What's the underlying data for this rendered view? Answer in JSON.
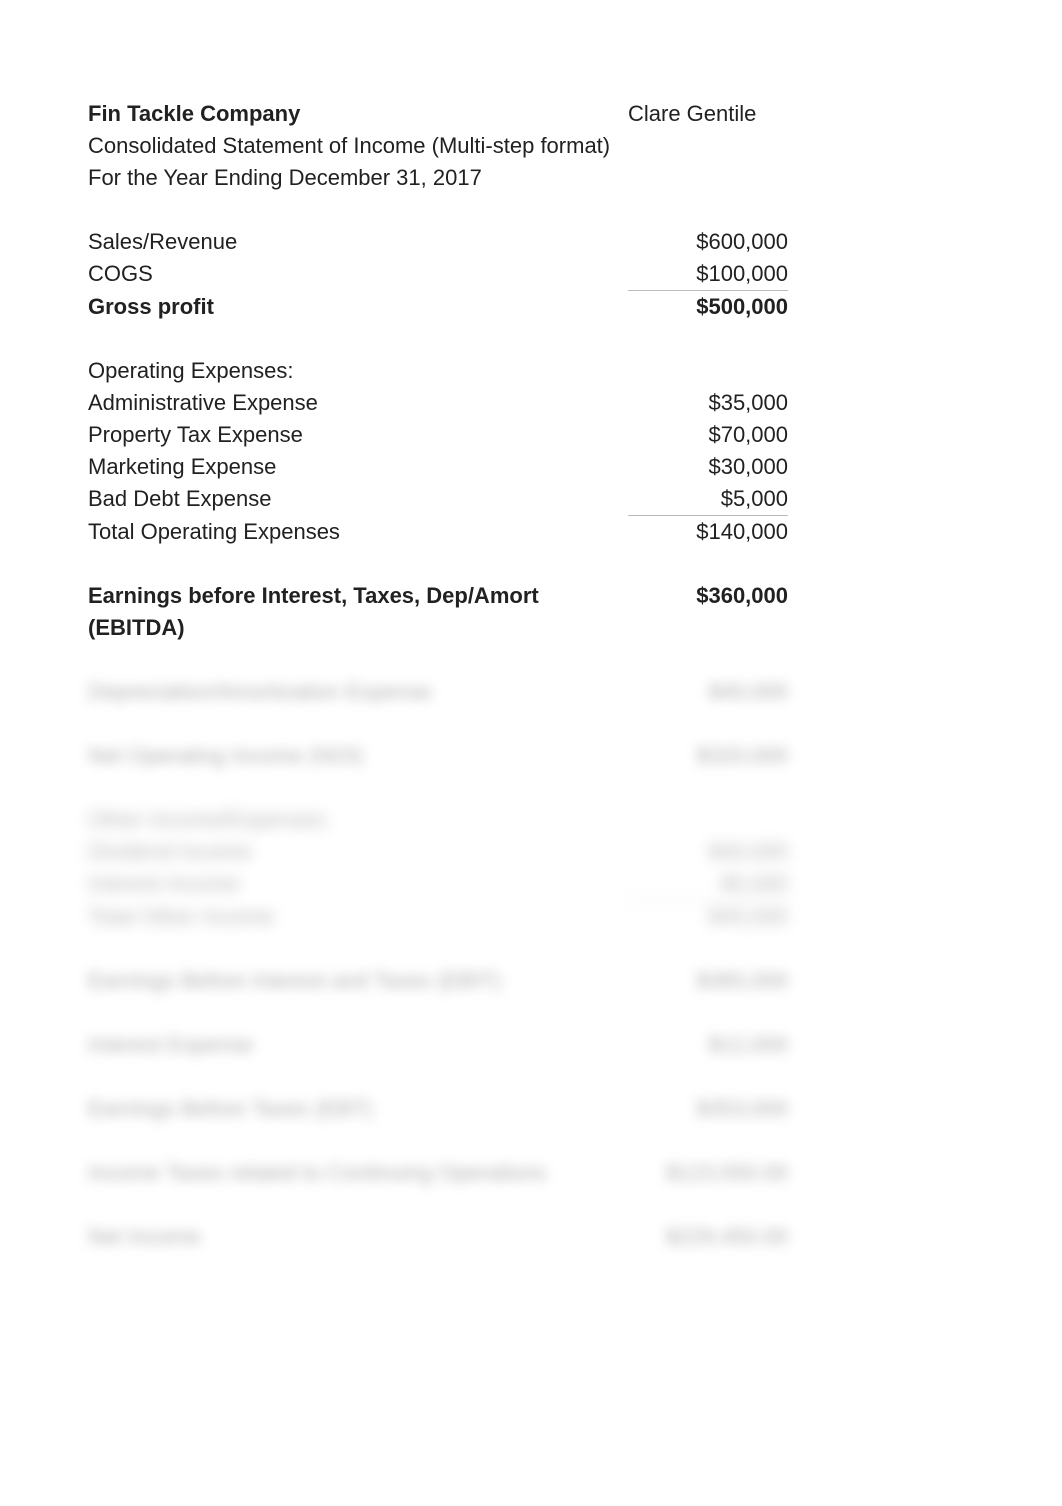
{
  "header": {
    "company": "Fin Tackle Company",
    "author": "Clare Gentile",
    "subtitle1": "Consolidated Statement of Income (Multi-step format)",
    "subtitle2": "For the Year Ending December 31, 2017"
  },
  "gross": {
    "sales_label": "Sales/Revenue",
    "sales_value": "$600,000",
    "cogs_label": "COGS",
    "cogs_value": "$100,000",
    "gp_label": "Gross profit",
    "gp_value": "$500,000"
  },
  "opex": {
    "heading": "Operating Expenses:",
    "admin_label": "Administrative Expense",
    "admin_value": "$35,000",
    "proptax_label": "Property Tax Expense",
    "proptax_value": "$70,000",
    "marketing_label": "Marketing Expense",
    "marketing_value": "$30,000",
    "baddebt_label": "Bad Debt Expense",
    "baddebt_value": "$5,000",
    "total_label": "Total Operating Expenses",
    "total_value": "$140,000"
  },
  "ebitda": {
    "label": "Earnings before Interest, Taxes, Dep/Amort (EBITDA)",
    "value": "$360,000"
  },
  "blurred": {
    "row1_label": "Depreciation/Amortization Expense",
    "row1_value": "$40,000",
    "row2_label": "Net Operating Income (NOI)",
    "row2_value": "$320,000",
    "group_heading": "Other Income/Expenses:",
    "row3_label": "Dividend Income",
    "row3_value": "$40,000",
    "row4_label": "Interest Income",
    "row4_value": "$5,000",
    "row5_label": "Total Other Income",
    "row5_value": "$45,000",
    "row6_label": "Earnings Before Interest and Taxes (EBIT)",
    "row6_value": "$365,000",
    "row7_label": "Interest Expense",
    "row7_value": "$12,000",
    "row8_label": "Earnings Before Taxes (EBT)",
    "row8_value": "$353,000",
    "row9_label": "Income Taxes related to Continuing Operations",
    "row9_value": "$123,550.00",
    "row10_label": "Net Income",
    "row10_value": "$229,450.00"
  }
}
